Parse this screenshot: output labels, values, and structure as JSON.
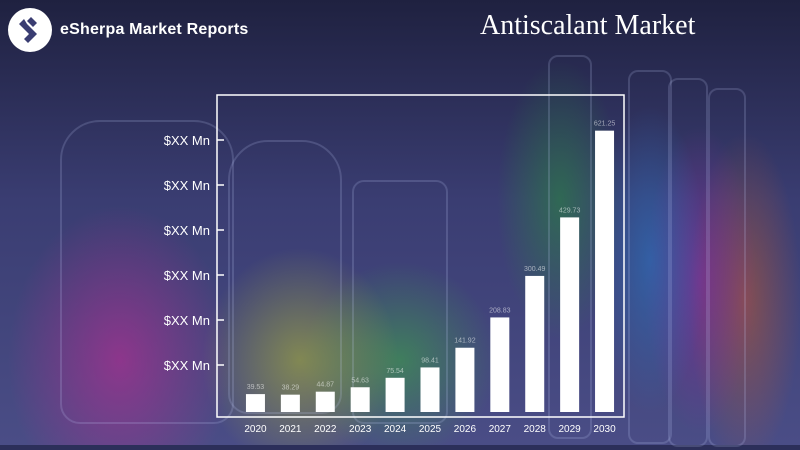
{
  "brand": {
    "name": "eSherpa Market Reports",
    "logo_icon": "esherpa-logo-icon"
  },
  "title": "Antiscalant Market",
  "chart_data": {
    "type": "bar",
    "title": "Antiscalant Market",
    "categories": [
      "2020",
      "2021",
      "2022",
      "2023",
      "2024",
      "2025",
      "2026",
      "2027",
      "2028",
      "2029",
      "2030"
    ],
    "values": [
      39.53,
      38.29,
      44.87,
      54.63,
      75.54,
      98.41,
      141.92,
      208.83,
      300.49,
      429.73,
      621.25
    ],
    "value_labels": [
      "39.53",
      "38.29",
      "44.87",
      "54.63",
      "75.54",
      "98.41",
      "141.92",
      "208.83",
      "300.49",
      "429.73",
      "621.25"
    ],
    "y_tick_labels": [
      "$XX Mn",
      "$XX Mn",
      "$XX Mn",
      "$XX Mn",
      "$XX Mn",
      "$XX Mn"
    ],
    "ylim": [
      0,
      700
    ],
    "grid": false,
    "bar_color": "#ffffff",
    "axis_color": "#ffffff"
  }
}
